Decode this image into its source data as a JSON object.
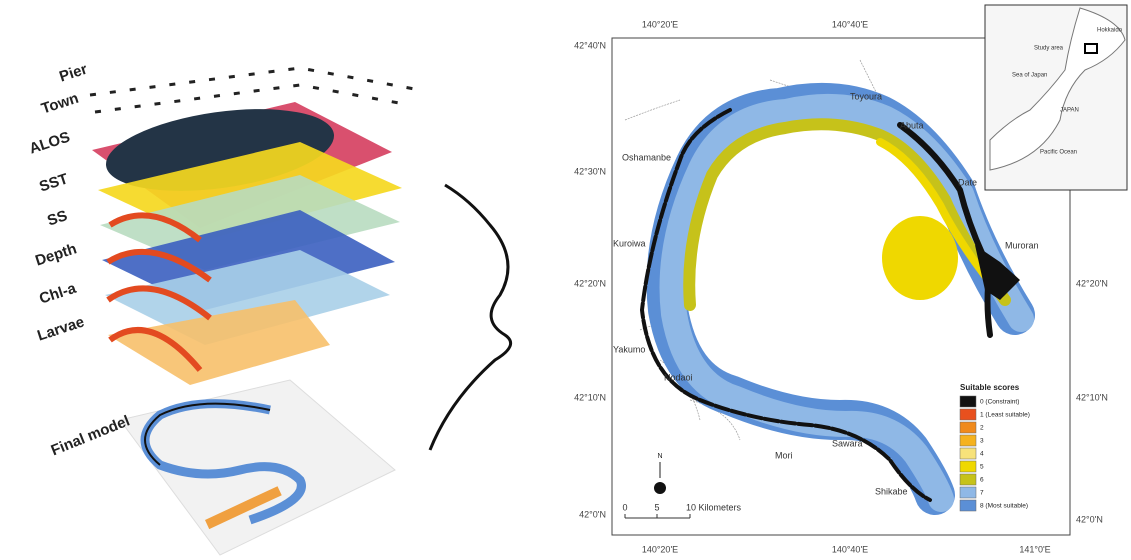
{
  "layers": [
    "Pier",
    "Town",
    "ALOS",
    "SST",
    "SS",
    "Depth",
    "Chl-a",
    "Larvae"
  ],
  "final_model": "Final model",
  "map": {
    "lon_top": [
      "140°20'E",
      "140°40'E"
    ],
    "lat_left": [
      "42°40'N",
      "42°30'N",
      "42°20'N",
      "42°10'N",
      "42°0'N"
    ],
    "lat_right": [
      "42°20'N",
      "42°10'N",
      "42°0'N"
    ],
    "lon_bottom": [
      "140°20'E",
      "140°40'E",
      "141°0'E"
    ],
    "places": [
      "Toyoura",
      "Abuta",
      "Date",
      "Muroran",
      "Oshamanbe",
      "Kuroiwa",
      "Yakumo",
      "Nodaoi",
      "Mori",
      "Sawara",
      "Shikabe"
    ],
    "legend": {
      "title": "Suitable scores",
      "items": [
        {
          "label": "0 (Constraint)",
          "color": "#111111"
        },
        {
          "label": "1 (Least suitable)",
          "color": "#e8501e"
        },
        {
          "label": "2",
          "color": "#f08a1c"
        },
        {
          "label": "3",
          "color": "#f5b21e"
        },
        {
          "label": "4",
          "color": "#f7e27a"
        },
        {
          "label": "5",
          "color": "#efd800"
        },
        {
          "label": "6",
          "color": "#c6c21a"
        },
        {
          "label": "7",
          "color": "#8fb8e6"
        },
        {
          "label": "8 (Most suitable)",
          "color": "#5b8fd6"
        }
      ]
    },
    "scale": [
      "0",
      "5",
      "10 Kilometers"
    ],
    "north": "N",
    "inset": {
      "study_area": "Study area",
      "sea": "Sea of Japan",
      "ocean": "Pacific Ocean",
      "hokkaido": "Hokkaido",
      "japan": "JAPAN"
    }
  }
}
